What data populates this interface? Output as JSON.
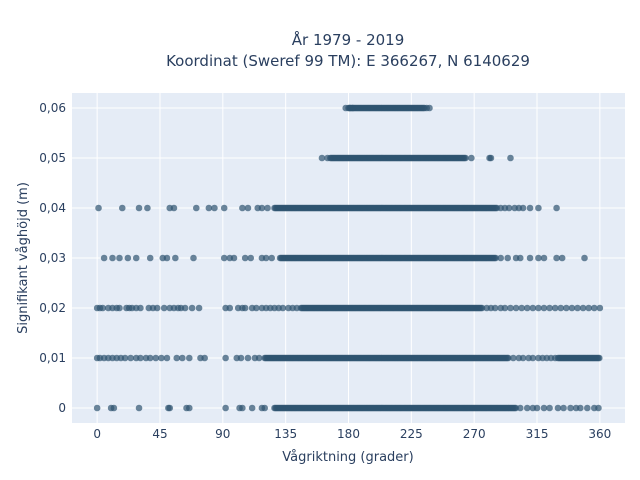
{
  "chart_data": {
    "type": "scatter",
    "title_line1": "År 1979 - 2019",
    "title_line2": "Koordinat (Sweref 99 TM): E 366267, N 6140629",
    "xlabel": "Vågriktning (grader)",
    "ylabel": "Signifikant våghöjd (m)",
    "xlim": [
      -18,
      378
    ],
    "ylim": [
      -0.003,
      0.063
    ],
    "xticks": [
      0,
      45,
      90,
      135,
      180,
      225,
      270,
      315,
      360
    ],
    "xtick_labels": [
      "0",
      "45",
      "90",
      "135",
      "180",
      "225",
      "270",
      "315",
      "360"
    ],
    "yticks": [
      0,
      0.01,
      0.02,
      0.03,
      0.04,
      0.05,
      0.06
    ],
    "ytick_labels": [
      "0",
      "0,01",
      "0,02",
      "0,03",
      "0,04",
      "0,05",
      "0,06"
    ],
    "grid": true,
    "colors": {
      "marker": "#2f5470",
      "plot_bg": "#e5ecf6",
      "grid": "#ffffff",
      "text": "#2a3f5f"
    },
    "series": [
      {
        "y": 0.06,
        "dense": [
          [
            180,
            235
          ]
        ],
        "sparse": [
          178,
          181,
          183,
          236,
          238
        ]
      },
      {
        "y": 0.05,
        "dense": [
          [
            167,
            264
          ]
        ],
        "sparse": [
          161,
          165,
          268,
          281,
          282,
          296
        ]
      },
      {
        "y": 0.04,
        "dense": [
          [
            127,
            287
          ]
        ],
        "sparse": [
          1,
          18,
          30,
          36,
          52,
          55,
          71,
          80,
          84,
          91,
          104,
          108,
          115,
          118,
          122,
          289,
          292,
          295,
          299,
          302,
          305,
          310,
          316,
          329
        ]
      },
      {
        "y": 0.03,
        "dense": [
          [
            131,
            286
          ]
        ],
        "sparse": [
          5,
          11,
          16,
          22,
          28,
          38,
          47,
          50,
          56,
          69,
          91,
          95,
          98,
          106,
          110,
          118,
          121,
          125,
          289,
          294,
          300,
          303,
          310,
          316,
          320,
          329,
          333,
          349
        ]
      },
      {
        "y": 0.02,
        "dense": [
          [
            146,
            276
          ]
        ],
        "sparse": [
          0,
          2,
          4,
          8,
          11,
          14,
          16,
          21,
          23,
          25,
          28,
          31,
          37,
          40,
          43,
          48,
          52,
          55,
          58,
          60,
          63,
          68,
          73,
          92,
          95,
          101,
          104,
          106,
          111,
          114,
          118,
          121,
          124,
          127,
          130,
          133,
          137,
          140,
          143,
          279,
          282,
          285,
          289,
          292,
          296,
          300,
          304,
          308,
          312,
          316,
          320,
          324,
          328,
          332,
          336,
          340,
          344,
          348,
          352,
          356,
          360
        ]
      },
      {
        "y": 0.01,
        "dense": [
          [
            120,
            295
          ],
          [
            330,
            360
          ]
        ],
        "sparse": [
          0,
          2,
          5,
          8,
          11,
          14,
          17,
          20,
          24,
          28,
          31,
          35,
          38,
          42,
          46,
          50,
          57,
          61,
          66,
          74,
          77,
          92,
          100,
          103,
          108,
          113,
          116,
          298,
          302,
          305,
          309,
          312,
          316,
          319,
          322,
          325,
          328
        ]
      },
      {
        "y": 0,
        "dense": [
          [
            127,
            300
          ]
        ],
        "sparse": [
          0,
          10,
          12,
          30,
          51,
          52,
          64,
          66,
          92,
          102,
          104,
          111,
          118,
          120,
          303,
          308,
          312,
          315,
          320,
          324,
          330,
          334,
          339,
          343,
          346,
          351,
          356,
          359
        ]
      }
    ]
  }
}
